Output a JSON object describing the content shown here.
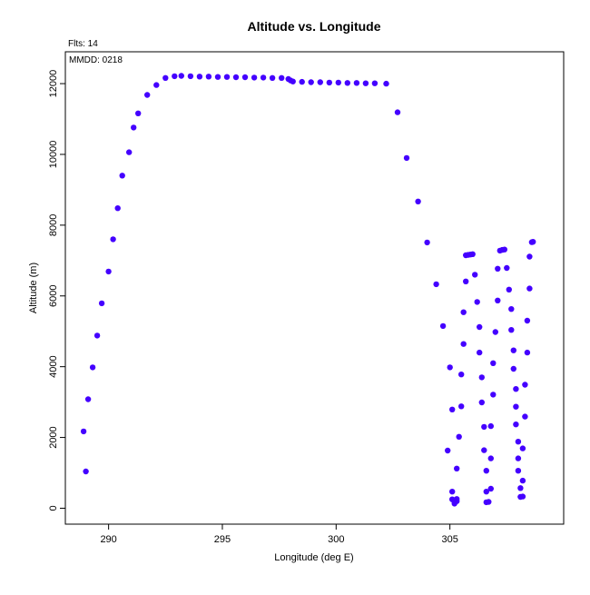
{
  "annotations": {
    "flts": "Flts: 14",
    "mmdd": "MMDD: 0218"
  },
  "marker_color": "#4400ff",
  "chart_data": {
    "type": "scatter",
    "title": "Altitude vs. Longitude",
    "xlabel": "Longitude (deg E)",
    "ylabel": "Altitude (m)",
    "xlim": [
      288.1,
      310.0
    ],
    "ylim": [
      -450,
      12900
    ],
    "xticks": [
      290,
      295,
      300,
      305
    ],
    "yticks": [
      0,
      2000,
      4000,
      6000,
      8000,
      10000,
      12000
    ],
    "xtick_labels": [
      "290",
      "295",
      "300",
      "305"
    ],
    "ytick_labels": [
      "0",
      "2000",
      "4000",
      "6000",
      "8000",
      "10000",
      "12000"
    ],
    "grid": false,
    "legend": "none",
    "series": [
      {
        "points": [
          [
            289.0,
            1040
          ],
          [
            288.9,
            2170
          ],
          [
            289.1,
            3080
          ],
          [
            289.3,
            3980
          ],
          [
            289.5,
            4880
          ],
          [
            289.7,
            5790
          ],
          [
            290.0,
            6690
          ],
          [
            290.2,
            7600
          ],
          [
            290.4,
            8480
          ],
          [
            290.6,
            9400
          ],
          [
            290.9,
            10060
          ],
          [
            291.1,
            10760
          ],
          [
            291.3,
            11160
          ],
          [
            291.7,
            11680
          ],
          [
            292.1,
            11960
          ],
          [
            292.5,
            12160
          ],
          [
            292.9,
            12210
          ],
          [
            293.2,
            12220
          ],
          [
            293.6,
            12210
          ],
          [
            294.0,
            12200
          ],
          [
            294.4,
            12200
          ],
          [
            294.8,
            12190
          ],
          [
            295.2,
            12190
          ],
          [
            295.6,
            12180
          ],
          [
            296.0,
            12180
          ],
          [
            296.4,
            12170
          ],
          [
            296.8,
            12170
          ],
          [
            297.2,
            12160
          ],
          [
            297.6,
            12160
          ],
          [
            297.9,
            12130
          ],
          [
            298.0,
            12090
          ],
          [
            298.1,
            12060
          ],
          [
            298.5,
            12050
          ],
          [
            298.9,
            12040
          ],
          [
            299.3,
            12040
          ],
          [
            299.7,
            12030
          ],
          [
            300.1,
            12030
          ],
          [
            300.5,
            12020
          ],
          [
            300.9,
            12020
          ],
          [
            301.3,
            12010
          ],
          [
            301.7,
            12010
          ],
          [
            302.2,
            12000
          ],
          [
            302.7,
            11190
          ],
          [
            303.1,
            9900
          ],
          [
            303.6,
            8670
          ],
          [
            304.0,
            7510
          ],
          [
            304.4,
            6330
          ],
          [
            304.7,
            5150
          ],
          [
            304.9,
            1630
          ],
          [
            305.0,
            3980
          ],
          [
            305.1,
            2790
          ],
          [
            305.1,
            470
          ],
          [
            305.1,
            250
          ],
          [
            305.2,
            190
          ],
          [
            305.2,
            130
          ],
          [
            305.3,
            200
          ],
          [
            305.3,
            260
          ],
          [
            305.3,
            1120
          ],
          [
            305.4,
            2020
          ],
          [
            305.5,
            2880
          ],
          [
            305.5,
            3780
          ],
          [
            305.6,
            4640
          ],
          [
            305.6,
            5540
          ],
          [
            305.7,
            6410
          ],
          [
            305.7,
            7150
          ],
          [
            305.8,
            7160
          ],
          [
            305.9,
            7170
          ],
          [
            306.0,
            7180
          ],
          [
            306.1,
            6600
          ],
          [
            306.2,
            5830
          ],
          [
            306.3,
            5120
          ],
          [
            306.3,
            4400
          ],
          [
            306.4,
            3700
          ],
          [
            306.4,
            2990
          ],
          [
            306.5,
            2300
          ],
          [
            306.5,
            1640
          ],
          [
            306.6,
            1060
          ],
          [
            306.6,
            470
          ],
          [
            306.6,
            170
          ],
          [
            306.7,
            180
          ],
          [
            306.8,
            550
          ],
          [
            306.8,
            1410
          ],
          [
            306.8,
            2320
          ],
          [
            306.9,
            3210
          ],
          [
            306.9,
            4100
          ],
          [
            307.0,
            4980
          ],
          [
            307.1,
            5870
          ],
          [
            307.1,
            6770
          ],
          [
            307.2,
            7280
          ],
          [
            307.3,
            7300
          ],
          [
            307.4,
            7310
          ],
          [
            307.5,
            6790
          ],
          [
            307.6,
            6180
          ],
          [
            307.7,
            5630
          ],
          [
            307.7,
            5040
          ],
          [
            307.8,
            4460
          ],
          [
            307.8,
            3940
          ],
          [
            307.9,
            3370
          ],
          [
            307.9,
            2870
          ],
          [
            307.9,
            2370
          ],
          [
            308.0,
            1880
          ],
          [
            308.0,
            1410
          ],
          [
            308.0,
            1060
          ],
          [
            308.1,
            570
          ],
          [
            308.1,
            320
          ],
          [
            308.2,
            330
          ],
          [
            308.2,
            780
          ],
          [
            308.2,
            1690
          ],
          [
            308.3,
            2590
          ],
          [
            308.3,
            3490
          ],
          [
            308.4,
            4400
          ],
          [
            308.4,
            5300
          ],
          [
            308.5,
            6210
          ],
          [
            308.5,
            7110
          ],
          [
            308.6,
            7520
          ],
          [
            308.65,
            7530
          ]
        ]
      }
    ]
  }
}
